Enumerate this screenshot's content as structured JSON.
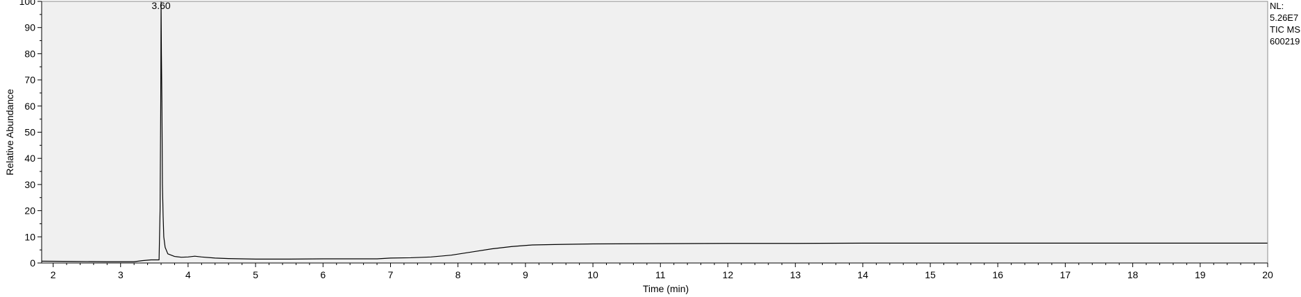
{
  "chart_data": {
    "type": "line",
    "title": "",
    "xlabel": "Time (min)",
    "ylabel": "Relative Abundance",
    "xlim": [
      1.83,
      20.0
    ],
    "ylim": [
      0,
      100
    ],
    "x_ticks": [
      2,
      3,
      4,
      5,
      6,
      7,
      8,
      9,
      10,
      11,
      12,
      13,
      14,
      15,
      16,
      17,
      18,
      19,
      20
    ],
    "y_ticks": [
      0,
      10,
      20,
      30,
      40,
      50,
      60,
      70,
      80,
      90,
      100
    ],
    "grid": false,
    "plot_background": "#f0f0f0",
    "line_color": "#000000",
    "peak_annotations": [
      {
        "label": "3.60",
        "x": 3.6,
        "y": 100
      }
    ],
    "info_text": [
      "NL:",
      "5.26E7",
      "TIC  MS",
      "600219"
    ],
    "series": [
      {
        "values_xy": [
          [
            1.83,
            0.7
          ],
          [
            2.3,
            0.6
          ],
          [
            2.8,
            0.5
          ],
          [
            3.2,
            0.5
          ],
          [
            3.32,
            0.9
          ],
          [
            3.45,
            1.2
          ],
          [
            3.57,
            1.2
          ],
          [
            3.585,
            20
          ],
          [
            3.595,
            62
          ],
          [
            3.6,
            100
          ],
          [
            3.605,
            80
          ],
          [
            3.612,
            62
          ],
          [
            3.62,
            30
          ],
          [
            3.63,
            18
          ],
          [
            3.64,
            10
          ],
          [
            3.66,
            6
          ],
          [
            3.7,
            3.5
          ],
          [
            3.8,
            2.5
          ],
          [
            3.9,
            2.2
          ],
          [
            4.0,
            2.3
          ],
          [
            4.1,
            2.6
          ],
          [
            4.2,
            2.3
          ],
          [
            4.4,
            1.9
          ],
          [
            4.6,
            1.7
          ],
          [
            5.0,
            1.5
          ],
          [
            5.5,
            1.5
          ],
          [
            6.0,
            1.6
          ],
          [
            6.5,
            1.6
          ],
          [
            6.8,
            1.6
          ],
          [
            7.0,
            1.9
          ],
          [
            7.3,
            2.0
          ],
          [
            7.6,
            2.3
          ],
          [
            7.9,
            3.0
          ],
          [
            8.2,
            4.2
          ],
          [
            8.5,
            5.4
          ],
          [
            8.8,
            6.3
          ],
          [
            9.1,
            6.9
          ],
          [
            9.5,
            7.1
          ],
          [
            10.0,
            7.3
          ],
          [
            11.0,
            7.4
          ],
          [
            12.0,
            7.5
          ],
          [
            13.0,
            7.5
          ],
          [
            14.0,
            7.6
          ],
          [
            15.0,
            7.6
          ],
          [
            16.0,
            7.6
          ],
          [
            17.0,
            7.6
          ],
          [
            18.0,
            7.6
          ],
          [
            19.0,
            7.6
          ],
          [
            20.0,
            7.6
          ]
        ]
      }
    ]
  }
}
